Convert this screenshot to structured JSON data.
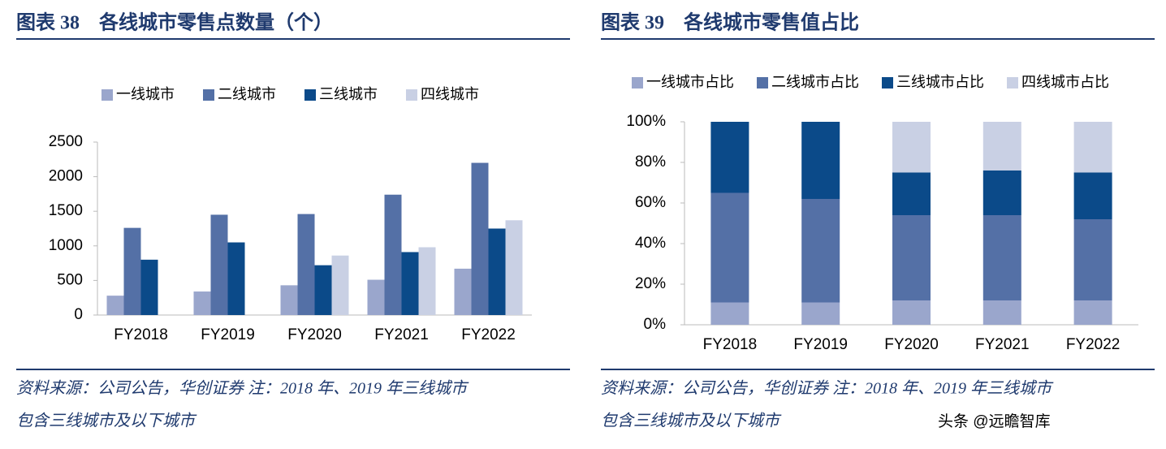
{
  "chart_data": [
    {
      "type": "bar",
      "title": "图表 38　各线城市零售点数量（个）",
      "categories": [
        "FY2018",
        "FY2019",
        "FY2020",
        "FY2021",
        "FY2022"
      ],
      "series": [
        {
          "name": "一线城市",
          "color": "#9aa6cc",
          "values": [
            280,
            340,
            430,
            510,
            670
          ]
        },
        {
          "name": "二线城市",
          "color": "#5470a6",
          "values": [
            1260,
            1450,
            1460,
            1740,
            2200
          ]
        },
        {
          "name": "三线城市",
          "color": "#0b4a89",
          "values": [
            800,
            1050,
            720,
            910,
            1250
          ]
        },
        {
          "name": "四线城市",
          "color": "#c9d0e4",
          "values": [
            null,
            null,
            860,
            980,
            1370
          ]
        }
      ],
      "ylim": [
        0,
        2500
      ],
      "yticks": [
        0,
        500,
        1000,
        1500,
        2000,
        2500
      ],
      "notes": [
        "资料来源：公司公告，华创证券  注：2018 年、2019 年三线城市",
        "包含三线城市及以下城市"
      ]
    },
    {
      "type": "stacked_bar",
      "title": "图表 39　各线城市零售值占比",
      "categories": [
        "FY2018",
        "FY2019",
        "FY2020",
        "FY2021",
        "FY2022"
      ],
      "series": [
        {
          "name": "一线城市占比",
          "color": "#9aa6cc",
          "values": [
            11,
            11,
            12,
            12,
            12
          ]
        },
        {
          "name": "二线城市占比",
          "color": "#5470a6",
          "values": [
            54,
            51,
            42,
            42,
            40
          ]
        },
        {
          "name": "三线城市占比",
          "color": "#0b4a89",
          "values": [
            35,
            38,
            21,
            22,
            23
          ]
        },
        {
          "name": "四线城市占比",
          "color": "#c9d0e4",
          "values": [
            null,
            null,
            25,
            24,
            25
          ]
        }
      ],
      "ylim": [
        0,
        100
      ],
      "yticks": [
        {
          "value": 0,
          "label": "0%"
        },
        {
          "value": 20,
          "label": "20%"
        },
        {
          "value": 40,
          "label": "40%"
        },
        {
          "value": 60,
          "label": "60%"
        },
        {
          "value": 80,
          "label": "80%"
        },
        {
          "value": 100,
          "label": "100%"
        }
      ],
      "notes": [
        "资料来源：公司公告，华创证券  注：2018 年、2019 年三线城市",
        "包含三线城市及以下城市"
      ]
    }
  ],
  "watermark": "头条 @远瞻智库"
}
